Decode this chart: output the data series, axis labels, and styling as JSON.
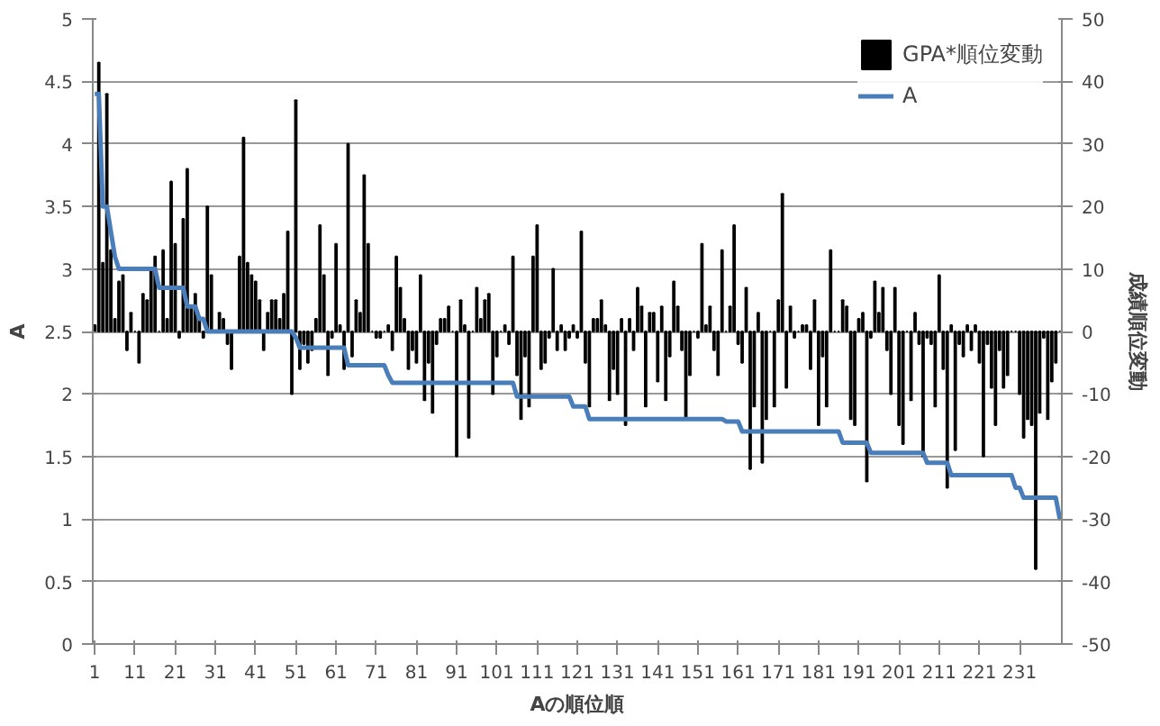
{
  "chart_data": {
    "type": "bar",
    "xlabel": "Aの順位順",
    "ylabel": "A",
    "y2label": "成績順位変動",
    "x": [
      1,
      2,
      3,
      4,
      5,
      6,
      7,
      8,
      9,
      10,
      11,
      12,
      13,
      14,
      15,
      16,
      17,
      18,
      19,
      20,
      21,
      22,
      23,
      24,
      25,
      26,
      27,
      28,
      29,
      30,
      31,
      32,
      33,
      34,
      35,
      36,
      37,
      38,
      39,
      40,
      41,
      42,
      43,
      44,
      45,
      46,
      47,
      48,
      49,
      50,
      51,
      52,
      53,
      54,
      55,
      56,
      57,
      58,
      59,
      60,
      61,
      62,
      63,
      64,
      65,
      66,
      67,
      68,
      69,
      70,
      71,
      72,
      73,
      74,
      75,
      76,
      77,
      78,
      79,
      80,
      81,
      82,
      83,
      84,
      85,
      86,
      87,
      88,
      89,
      90,
      91,
      92,
      93,
      94,
      95,
      96,
      97,
      98,
      99,
      100,
      101,
      102,
      103,
      104,
      105,
      106,
      107,
      108,
      109,
      110,
      111,
      112,
      113,
      114,
      115,
      116,
      117,
      118,
      119,
      120,
      121,
      122,
      123,
      124,
      125,
      126,
      127,
      128,
      129,
      130,
      131,
      132,
      133,
      134,
      135,
      136,
      137,
      138,
      139,
      140,
      141,
      142,
      143,
      144,
      145,
      146,
      147,
      148,
      149,
      150,
      151,
      152,
      153,
      154,
      155,
      156,
      157,
      158,
      159,
      160,
      161,
      162,
      163,
      164,
      165,
      166,
      167,
      168,
      169,
      170,
      171,
      172,
      173,
      174,
      175,
      176,
      177,
      178,
      179,
      180,
      181,
      182,
      183,
      184,
      185,
      186,
      187,
      188,
      189,
      190,
      191,
      192,
      193,
      194,
      195,
      196,
      197,
      198,
      199,
      200,
      201,
      202,
      203,
      204,
      205,
      206,
      207,
      208,
      209,
      210,
      211,
      212,
      213,
      214,
      215,
      216,
      217,
      218,
      219,
      220,
      221,
      222,
      223,
      224,
      225,
      226,
      227,
      228,
      229,
      230,
      231,
      232,
      233,
      234,
      235,
      236,
      237,
      238,
      239,
      240,
      241
    ],
    "xlim": [
      0.5,
      241.5
    ],
    "xticks": [
      1,
      11,
      21,
      31,
      41,
      51,
      61,
      71,
      81,
      91,
      101,
      111,
      121,
      131,
      141,
      151,
      161,
      171,
      181,
      191,
      201,
      211,
      221,
      231
    ],
    "ylim": [
      0,
      5
    ],
    "yticks": [
      0,
      0.5,
      1,
      1.5,
      2,
      2.5,
      3,
      3.5,
      4,
      4.5,
      5
    ],
    "y2lim": [
      -50,
      50
    ],
    "y2ticks": [
      -50,
      -40,
      -30,
      -20,
      -10,
      0,
      10,
      20,
      30,
      40,
      50
    ],
    "grid": "y",
    "legend": "top right",
    "line_style": "solid",
    "marker": "none",
    "series": [
      {
        "name": "GPA*順位変動",
        "axis": "y2",
        "color": "#000000",
        "values": [
          1,
          43,
          11,
          38,
          13,
          2,
          8,
          9,
          -3,
          3,
          0,
          -5,
          6,
          5,
          10,
          12,
          0,
          13,
          2,
          24,
          14,
          -1,
          18,
          26,
          4,
          6,
          2,
          -1,
          20,
          9,
          0,
          3,
          2,
          -2,
          -6,
          0,
          12,
          31,
          11,
          9,
          8,
          5,
          -3,
          3,
          5,
          5,
          2,
          6,
          16,
          -10,
          37,
          -6,
          -2,
          -5,
          -3,
          2,
          17,
          9,
          -7,
          -1,
          14,
          1,
          -6,
          30,
          -4,
          5,
          3,
          25,
          14,
          0,
          -1,
          -1,
          0,
          1,
          -3,
          12,
          7,
          2,
          -6,
          -3,
          -5,
          9,
          -11,
          -5,
          -13,
          -2,
          2,
          2,
          4,
          0,
          -20,
          5,
          1,
          -17,
          0,
          7,
          2,
          5,
          6,
          -10,
          -4,
          0,
          1,
          -2,
          12,
          -7,
          -14,
          -4,
          -12,
          12,
          17,
          -6,
          -5,
          -1,
          10,
          -3,
          1,
          -3,
          -1,
          1,
          -1,
          16,
          -5,
          -12,
          2,
          2,
          5,
          1,
          -11,
          -6,
          -10,
          2,
          -15,
          2,
          -3,
          7,
          4,
          -12,
          3,
          3,
          -8,
          4,
          -11,
          -4,
          8,
          4,
          -3,
          -14,
          -7,
          0,
          -1,
          14,
          1,
          4,
          -3,
          -7,
          13,
          0,
          4,
          17,
          -2,
          -5,
          7,
          -22,
          -12,
          3,
          -21,
          -14,
          0,
          -12,
          5,
          22,
          -9,
          4,
          -1,
          0,
          1,
          1,
          -6,
          5,
          -15,
          -4,
          -12,
          13,
          0,
          0,
          5,
          4,
          -14,
          -15,
          2,
          3,
          -24,
          -1,
          8,
          3,
          7,
          -3,
          -10,
          7,
          -15,
          -18,
          0,
          -11,
          3,
          -2,
          -20,
          -1,
          -2,
          -12,
          9,
          -6,
          -25,
          1,
          -19,
          -2,
          -4,
          1,
          -3,
          1,
          -5,
          -20,
          -2,
          -9,
          -15,
          -3,
          -9,
          -7,
          0,
          0,
          -10,
          -17,
          -14,
          -15,
          -38,
          -13,
          -1,
          -14,
          -8,
          -5,
          0
        ]
      },
      {
        "name": "A",
        "type": "line",
        "axis": "y",
        "color": "#4a7ebb",
        "values": [
          4.4,
          4.4,
          3.5,
          3.5,
          3.3,
          3.1,
          3,
          3,
          3,
          3,
          3,
          3,
          3,
          3,
          3,
          3,
          2.85,
          2.85,
          2.85,
          2.85,
          2.85,
          2.85,
          2.85,
          2.7,
          2.7,
          2.7,
          2.6,
          2.6,
          2.5,
          2.5,
          2.5,
          2.5,
          2.5,
          2.5,
          2.5,
          2.5,
          2.5,
          2.5,
          2.5,
          2.5,
          2.5,
          2.5,
          2.5,
          2.5,
          2.5,
          2.5,
          2.5,
          2.5,
          2.5,
          2.5,
          2.45,
          2.37,
          2.37,
          2.37,
          2.37,
          2.37,
          2.37,
          2.37,
          2.37,
          2.37,
          2.37,
          2.37,
          2.37,
          2.23,
          2.23,
          2.23,
          2.23,
          2.23,
          2.23,
          2.23,
          2.23,
          2.23,
          2.23,
          2.15,
          2.09,
          2.09,
          2.09,
          2.09,
          2.09,
          2.09,
          2.09,
          2.09,
          2.09,
          2.09,
          2.09,
          2.09,
          2.09,
          2.09,
          2.09,
          2.09,
          2.09,
          2.09,
          2.09,
          2.09,
          2.09,
          2.09,
          2.09,
          2.09,
          2.09,
          2.09,
          2.09,
          2.09,
          2.09,
          2.09,
          2.09,
          1.98,
          1.98,
          1.98,
          1.98,
          1.98,
          1.98,
          1.98,
          1.98,
          1.98,
          1.98,
          1.98,
          1.98,
          1.98,
          1.98,
          1.9,
          1.9,
          1.9,
          1.9,
          1.8,
          1.8,
          1.8,
          1.8,
          1.8,
          1.8,
          1.8,
          1.8,
          1.8,
          1.8,
          1.8,
          1.8,
          1.8,
          1.8,
          1.8,
          1.8,
          1.8,
          1.8,
          1.8,
          1.8,
          1.8,
          1.8,
          1.8,
          1.8,
          1.8,
          1.8,
          1.8,
          1.8,
          1.8,
          1.8,
          1.8,
          1.8,
          1.8,
          1.8,
          1.78,
          1.78,
          1.78,
          1.78,
          1.7,
          1.7,
          1.7,
          1.7,
          1.7,
          1.7,
          1.7,
          1.7,
          1.7,
          1.7,
          1.7,
          1.7,
          1.7,
          1.7,
          1.7,
          1.7,
          1.7,
          1.7,
          1.7,
          1.7,
          1.7,
          1.7,
          1.7,
          1.7,
          1.7,
          1.61,
          1.61,
          1.61,
          1.61,
          1.61,
          1.61,
          1.61,
          1.53,
          1.53,
          1.53,
          1.53,
          1.53,
          1.53,
          1.53,
          1.53,
          1.53,
          1.53,
          1.53,
          1.53,
          1.53,
          1.53,
          1.45,
          1.45,
          1.45,
          1.45,
          1.45,
          1.45,
          1.35,
          1.35,
          1.35,
          1.35,
          1.35,
          1.35,
          1.35,
          1.35,
          1.35,
          1.35,
          1.35,
          1.35,
          1.35,
          1.35,
          1.35,
          1.35,
          1.25,
          1.25,
          1.17,
          1.17,
          1.17,
          1.17,
          1.17,
          1.17,
          1.17,
          1.17,
          1.17,
          1.0
        ]
      }
    ]
  }
}
